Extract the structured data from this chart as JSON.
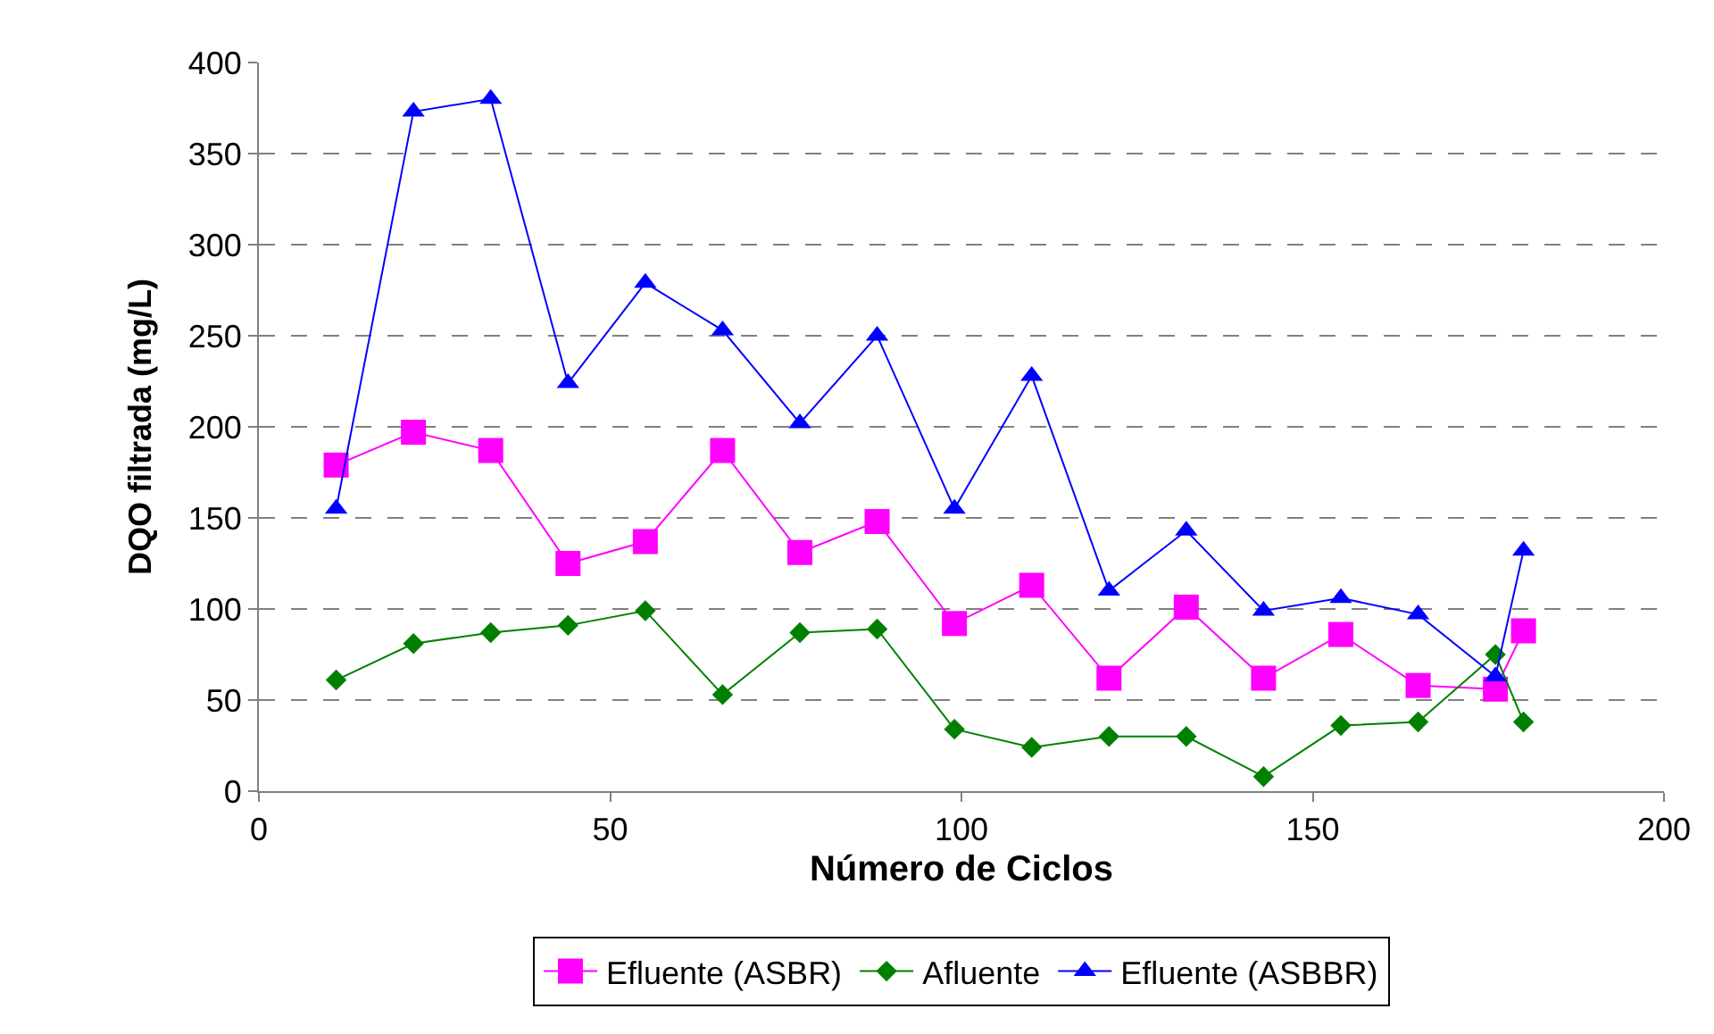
{
  "chart_data": {
    "type": "line",
    "xlabel": "Número de Ciclos",
    "ylabel": "DQO filtrada (mg/L)",
    "x": [
      11,
      22,
      33,
      44,
      55,
      66,
      77,
      88,
      99,
      110,
      121,
      132,
      143,
      154,
      165,
      176,
      180
    ],
    "series": [
      {
        "name": "Efluente (ASBR)",
        "color": "#ff00ff",
        "marker": "square",
        "values": [
          179,
          197,
          187,
          125,
          137,
          187,
          131,
          148,
          92,
          113,
          62,
          101,
          62,
          86,
          58,
          56,
          88
        ]
      },
      {
        "name": "Afluente",
        "color": "#008000",
        "marker": "diamond",
        "values": [
          61,
          81,
          87,
          91,
          99,
          53,
          87,
          89,
          34,
          24,
          30,
          30,
          8,
          36,
          38,
          75,
          38
        ]
      },
      {
        "name": "Efluente (ASBBR)",
        "color": "#0000ff",
        "marker": "triangle",
        "values": [
          155,
          373,
          380,
          224,
          279,
          253,
          202,
          250,
          155,
          228,
          110,
          143,
          99,
          106,
          97,
          63,
          132
        ]
      }
    ],
    "xlim": [
      0,
      200
    ],
    "xticks": [
      0,
      50,
      100,
      150,
      200
    ],
    "ylim": [
      0,
      400
    ],
    "yticks": [
      0,
      50,
      100,
      150,
      200,
      250,
      300,
      350,
      400
    ],
    "grid": "y",
    "legend": "bottom",
    "line_style": "solid"
  }
}
